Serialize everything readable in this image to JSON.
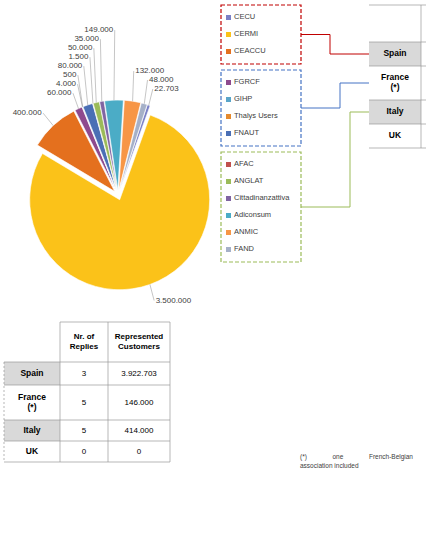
{
  "chart_data": {
    "type": "pie",
    "categories": [
      "CECU",
      "CERMI",
      "CEACCU",
      "FGRCF",
      "GIHP",
      "Thalys Users",
      "FNAUT",
      "AFAC",
      "ANGLAT",
      "Cittadinanzattiva",
      "Adiconsum",
      "ANMIC",
      "FAND"
    ],
    "values": [
      22703,
      3500000,
      400000,
      60000,
      4000,
      500,
      80000,
      1500,
      50000,
      35000,
      149000,
      132000,
      48000
    ],
    "value_labels": [
      "22.703",
      "3.500.000",
      "400.000",
      "60.000",
      "4.000",
      "500",
      "80.000",
      "1.500",
      "50.000",
      "35.000",
      "149.000",
      "132.000",
      "48.000"
    ],
    "colors": [
      "#7a80c6",
      "#fbc219",
      "#e4701e",
      "#8e4a8e",
      "#5aa5c9",
      "#e58a2e",
      "#4a6fb5",
      "#c0504d",
      "#9bbb59",
      "#8064a2",
      "#4bacc6",
      "#f79646",
      "#a5b0c8"
    ],
    "data_labels": true,
    "legend": "right"
  },
  "legend_boxes": [
    {
      "table_row": 0,
      "size": 3,
      "color": "#c00000"
    },
    {
      "table_row": 1,
      "size": 4,
      "color": "#4472c4"
    },
    {
      "table_row": 2,
      "size": 6,
      "color": "#9bbb59"
    }
  ],
  "table": {
    "header": [
      "Nr. of\nReplies",
      "Represented\nCustomers"
    ],
    "rows": [
      [
        "Spain",
        3,
        "3.922.703"
      ],
      [
        "France\n(*)",
        5,
        "146.000"
      ],
      [
        "Italy",
        5,
        "414.000"
      ],
      [
        "UK",
        0,
        0
      ]
    ]
  },
  "footnote": [
    "(*) one French-Belgian",
    "association included"
  ]
}
